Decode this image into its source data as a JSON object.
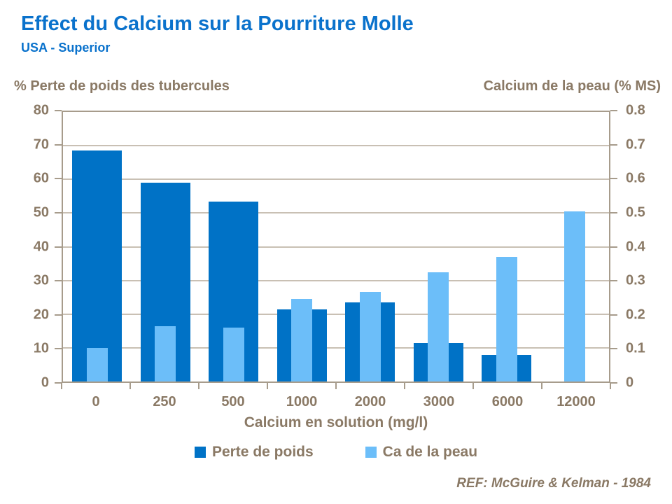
{
  "header": {
    "title": "Effect du Calcium sur la Pourriture Molle",
    "subtitle": "USA - Superior"
  },
  "axes": {
    "left_title": "% Perte de poids des tubercules",
    "right_title": "Calcium de la peau (% MS)",
    "x_title": "Calcium en solution (mg/l)"
  },
  "legend": {
    "items": [
      {
        "label": "Perte de poids",
        "color": "#0072c6"
      },
      {
        "label": "Ca de la peau",
        "color": "#6cbef9"
      }
    ]
  },
  "footer": {
    "ref": "REF: McGuire & Kelman - 1984"
  },
  "colors": {
    "title_blue": "#0a72cc",
    "dark_bar": "#0072c6",
    "light_bar": "#6cbef9",
    "text_brown": "#8a7965",
    "gridline": "#c9c0b4",
    "axis_line": "#a79c8c"
  },
  "chart_data": {
    "type": "bar",
    "title": "Effect du Calcium sur la Pourriture Molle",
    "subtitle": "USA - Superior",
    "categories": [
      "0",
      "250",
      "500",
      "1000",
      "2000",
      "3000",
      "6000",
      "12000"
    ],
    "xlabel": "Calcium en solution (mg/l)",
    "series": [
      {
        "name": "Perte de poids",
        "axis": "left",
        "color": "#0072c6",
        "values": [
          68.5,
          59,
          53.5,
          21.5,
          23.5,
          11.5,
          8,
          null
        ]
      },
      {
        "name": "Ca de la peau",
        "axis": "right",
        "color": "#6cbef9",
        "values": [
          0.1,
          0.165,
          0.16,
          0.245,
          0.265,
          0.325,
          0.37,
          0.505
        ]
      }
    ],
    "left_axis": {
      "title": "% Perte de poids des tubercules",
      "min": 0,
      "max": 80,
      "step": 10,
      "ticks": [
        "0",
        "10",
        "20",
        "30",
        "40",
        "50",
        "60",
        "70",
        "80"
      ]
    },
    "right_axis": {
      "title": "Calcium de la peau (% MS)",
      "min": 0,
      "max": 0.8,
      "step": 0.1,
      "ticks": [
        "0",
        "0.1",
        "0.2",
        "0.3",
        "0.4",
        "0.5",
        "0.6",
        "0.7",
        "0.8"
      ]
    },
    "grid": true,
    "legend_position": "bottom",
    "bar_layout": "light bars drawn narrower, centered over wide dark bars",
    "reference": "REF: McGuire & Kelman - 1984"
  }
}
